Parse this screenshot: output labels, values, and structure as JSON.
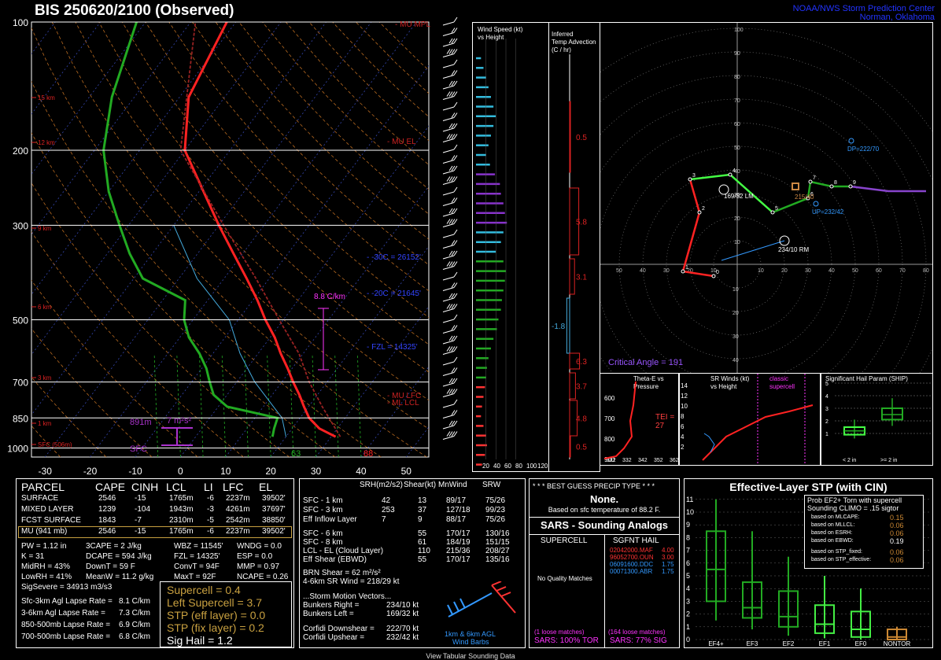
{
  "header": {
    "title": "BIS    250620/2100  (Observed)",
    "org_line1": "NOAA/NWS Storm Prediction Center",
    "org_line2": "Norman, Oklahoma"
  },
  "skewt": {
    "pressure_labels": [
      "100",
      "200",
      "300",
      "500",
      "700",
      "850",
      "1000"
    ],
    "temp_labels": [
      "-30",
      "-20",
      "-10",
      "0",
      "10",
      "20",
      "30",
      "40",
      "50"
    ],
    "height_labels": [
      "15 km",
      "12 km",
      "9 km",
      "6 km",
      "3 km",
      "1 km",
      "SFC (506m)"
    ],
    "level_labels": {
      "mu_mpl": "MU MPL",
      "mu_el": "MU EL",
      "mu_lfc": "MU LFC",
      "ml_lcl": "ML LCL",
      "m30c": "-30C = 26152'",
      "m20c": "-20C = 21645'",
      "fzl": "FZL = 14325'"
    },
    "lapse_label": "8.8 C/km",
    "eff_inflow": {
      "top": "891m",
      "srh": "7 m²s²",
      "bottom": "SFC"
    },
    "sfc_dewpoint": "63",
    "sfc_temp": "88"
  },
  "wind_panel": {
    "title1": "Wind Speed (kt)",
    "title2": "vs Height",
    "axis_labels": [
      "20",
      "40",
      "60",
      "80",
      "100",
      "120"
    ]
  },
  "advection_panel": {
    "title1": "Inferred",
    "title2": "Temp Advection",
    "title3": "(C / hr)",
    "values": [
      "0.5",
      "5.8",
      "3.1",
      "-1.8",
      "6.3",
      "3.7",
      "4.8",
      "0.5"
    ]
  },
  "hodograph": {
    "ring_labels": [
      "100",
      "90",
      "80",
      "70",
      "60",
      "50",
      "40",
      "30",
      "20",
      "10"
    ],
    "axis_labels": [
      "50",
      "40",
      "30",
      "20",
      "10",
      "10",
      "20",
      "30",
      "40",
      "50",
      "60",
      "70",
      "80"
    ],
    "neg_labels": [
      "10",
      "20",
      "30",
      "40"
    ],
    "lm_label": "169/32 LM",
    "rm_label": "234/10 RM",
    "dp_label": "DP=222/70",
    "up_label": "UP=232/42",
    "mean_label": "215/40",
    "critical_angle": "Critical Angle = 191",
    "points": [
      "0",
      "1",
      "2",
      "3",
      "4",
      "5",
      "6",
      "7",
      "8",
      "9"
    ]
  },
  "theta_panel": {
    "title1": "Theta-E vs",
    "title2": "Pressure",
    "tei": "TEI = 27",
    "p_labels": [
      "600",
      "700",
      "800",
      "900"
    ],
    "t_labels": [
      "322",
      "332",
      "342",
      "352",
      "362"
    ]
  },
  "srwind_panel": {
    "title1": "SR Winds (kt)",
    "title2": "vs Height",
    "classic": "classic",
    "supercell": "supercell",
    "h_labels": [
      "14",
      "12",
      "10",
      "8",
      "6",
      "4",
      "2"
    ]
  },
  "ship_panel": {
    "title": "Significant Hail Param (SHIP)",
    "y_labels": [
      "5",
      "4",
      "3",
      "2",
      "1"
    ],
    "x_labels": [
      "< 2 in",
      ">= 2 in"
    ]
  },
  "parcel_table": {
    "headers": [
      "PARCEL",
      "CAPE",
      "CINH",
      "LCL",
      "LI",
      "LFC",
      "EL"
    ],
    "rows": [
      [
        "SURFACE",
        "2546",
        "-15",
        "1765m",
        "-6",
        "2237m",
        "39502'"
      ],
      [
        "MIXED LAYER",
        "1239",
        "-104",
        "1943m",
        "-3",
        "4261m",
        "37697'"
      ],
      [
        "FCST SURFACE",
        "1843",
        "-7",
        "2310m",
        "-5",
        "2542m",
        "38850'"
      ],
      [
        "MU  (941 mb)",
        "2546",
        "-15",
        "1765m",
        "-6",
        "2237m",
        "39502'"
      ]
    ],
    "thermo": [
      [
        "PW = 1.12 in",
        "3CAPE = 2 J/kg",
        "WBZ = 11545'",
        "WNDG = 0.0"
      ],
      [
        "K = 31",
        "DCAPE = 594 J/kg",
        "FZL = 14325'",
        "ESP = 0.0"
      ],
      [
        "MidRH = 43%",
        "DownT = 59 F",
        "ConvT = 94F",
        "MMP = 0.97"
      ],
      [
        "LowRH = 41%",
        "MeanW = 11.2 g/kg",
        "MaxT = 92F",
        "NCAPE = 0.26"
      ]
    ],
    "sigsevere": "SigSevere = 34913 m3/s3",
    "lapse_rates": [
      [
        "Sfc-3km Agl Lapse Rate =",
        "8.1 C/km"
      ],
      [
        "3-6km Agl Lapse Rate =",
        "7.3 C/km"
      ],
      [
        "850-500mb Lapse Rate =",
        "6.9 C/km"
      ],
      [
        "700-500mb Lapse Rate =",
        "6.8 C/km"
      ]
    ],
    "indices": [
      "Supercell = 0.4",
      "Left Supercell = 3.7",
      "STP (eff layer) = 0.0",
      "STP (fix layer) = 0.2",
      "Sig Hail = 1.2"
    ]
  },
  "kinematic_table": {
    "headers": [
      "SRH(m2/s2)",
      "Shear(kt)",
      "MnWind",
      "SRW"
    ],
    "rows1": [
      [
        "SFC - 1 km",
        "42",
        "13",
        "89/17",
        "75/26"
      ],
      [
        "SFC - 3 km",
        "253",
        "37",
        "127/18",
        "99/23"
      ],
      [
        "Eff Inflow Layer",
        "7",
        "9",
        "88/17",
        "75/26"
      ]
    ],
    "rows2": [
      [
        "SFC - 6 km",
        "",
        "55",
        "170/17",
        "130/16"
      ],
      [
        "SFC - 8 km",
        "",
        "61",
        "184/19",
        "151/15"
      ],
      [
        "LCL - EL (Cloud Layer)",
        "",
        "110",
        "215/36",
        "208/27"
      ],
      [
        "Eff Shear (EBWD)",
        "",
        "55",
        "170/17",
        "135/16"
      ]
    ],
    "brn": [
      "BRN Shear =  62 m²/s²",
      "4-6km SR Wind =       218/29 kt"
    ],
    "storm_motion_title": "...Storm Motion Vectors...",
    "storm_motion": [
      [
        "Bunkers Right =",
        "234/10 kt"
      ],
      [
        "Bunkers Left =",
        "169/32 kt"
      ],
      [
        "Corfidi Downshear =",
        "222/70 kt"
      ],
      [
        "Corfidi Upshear =",
        "232/42 kt"
      ]
    ],
    "barb_label1": "1km & 6km AGL",
    "barb_label2": "Wind Barbs"
  },
  "precip": {
    "title": "* * * BEST GUESS PRECIP TYPE * * *",
    "value": "None.",
    "note": "Based on sfc temperature of 88.2 F."
  },
  "sars": {
    "title": "SARS - Sounding Analogs",
    "col1": "SUPERCELL",
    "col2": "SGFNT HAIL",
    "no_match": "No Quality Matches",
    "hail_matches": [
      [
        "02042000.MAF",
        "4.00"
      ],
      [
        "96052700.OUN",
        "3.00"
      ],
      [
        "06091600.DDC",
        "1.75"
      ],
      [
        "00071300.ABR",
        "1.75"
      ]
    ],
    "loose1": "(1 loose matches)",
    "loose2": "(164 loose matches)",
    "sars1": "SARS:  100% TOR",
    "sars2": "SARS:  77% SIG"
  },
  "stp": {
    "title": "Effective-Layer STP (with CIN)",
    "prob_title1": "Prob EF2+ Torn with supercell",
    "prob_title2": "Sounding CLIMO = .15 sigtor",
    "based": [
      [
        "based on MLCAPE:",
        "0.15"
      ],
      [
        "based on MLLCL:",
        "0.06"
      ],
      [
        "based on ESRH:",
        "0.06"
      ],
      [
        "based on EBWD:",
        "0.19"
      ],
      [
        "based on STP_fixed:",
        "0.06"
      ],
      [
        "based on STP_effective:",
        "0.06"
      ]
    ],
    "y_labels": [
      "11",
      "10",
      "9",
      "8",
      "7",
      "6",
      "5",
      "4",
      "3",
      "2",
      "1",
      "0"
    ],
    "categories": [
      "EF4+",
      "EF3",
      "EF2",
      "EF1",
      "EF0",
      "NONTOR"
    ]
  },
  "chart_data": [
    {
      "type": "line",
      "title": "Skew-T log-P",
      "xlabel": "",
      "ylabel": "",
      "ylim": [
        1000,
        100
      ],
      "xlim": [
        -30,
        50
      ],
      "series": [
        {
          "name": "temperature",
          "pressure": [
            941,
            900,
            850,
            800,
            750,
            700,
            650,
            600,
            550,
            500,
            450,
            400,
            350,
            300,
            250,
            200,
            150,
            100
          ],
          "values": [
            31,
            26,
            22,
            19,
            16,
            12.5,
            9,
            5,
            1,
            -4,
            -9,
            -15,
            -22,
            -30,
            -39,
            -50,
            -58,
            -62
          ]
        },
        {
          "name": "dewpoint",
          "pressure": [
            941,
            900,
            850,
            800,
            750,
            700,
            650,
            600,
            550,
            500,
            450,
            400,
            350,
            300,
            250,
            200,
            150,
            100
          ],
          "values": [
            17,
            16,
            15,
            2,
            -3,
            -6,
            -9,
            -13,
            -18,
            -22,
            -25,
            -38,
            -45,
            -52,
            -60,
            -68,
            -75,
            -82
          ]
        }
      ]
    },
    {
      "type": "bar",
      "title": "Wind Speed (kt) vs Height",
      "xlim": [
        0,
        120
      ],
      "values": [
        10,
        15,
        20,
        25,
        30,
        35,
        40,
        35,
        30,
        25,
        20,
        28,
        38,
        48,
        50,
        55,
        58,
        62,
        55,
        50,
        40,
        55,
        60,
        58,
        55,
        52,
        50,
        45,
        42,
        35,
        30,
        25,
        22,
        20,
        18,
        15,
        12,
        10,
        15,
        20,
        22,
        18,
        12,
        10
      ]
    },
    {
      "type": "bar",
      "title": "Inferred Temp Advection (C / hr)",
      "values": [
        0.5,
        5.8,
        3.1,
        -1.8,
        6.3,
        3.7,
        4.8,
        0.5
      ]
    },
    {
      "type": "box",
      "title": "Effective-Layer STP (with CIN)",
      "categories": [
        "EF4+",
        "EF3",
        "EF2",
        "EF1",
        "EF0",
        "NONTOR"
      ],
      "ylim": [
        0,
        11
      ],
      "boxes": [
        {
          "low": 1.5,
          "q1": 3.0,
          "median": 5.5,
          "q3": 8.5,
          "high": 11.0
        },
        {
          "low": 0.8,
          "q1": 1.7,
          "median": 2.5,
          "q3": 4.5,
          "high": 8.5
        },
        {
          "low": 0.3,
          "q1": 1.0,
          "median": 1.8,
          "q3": 3.8,
          "high": 6.5
        },
        {
          "low": 0.1,
          "q1": 0.5,
          "median": 1.2,
          "q3": 2.7,
          "high": 5.0
        },
        {
          "low": 0.0,
          "q1": 0.2,
          "median": 0.8,
          "q3": 2.2,
          "high": 4.0
        },
        {
          "low": 0.0,
          "q1": 0.0,
          "median": 0.2,
          "q3": 0.8,
          "high": 1.0
        }
      ]
    },
    {
      "type": "box",
      "title": "Significant Hail Param (SHIP)",
      "categories": [
        "< 2 in",
        ">= 2 in"
      ],
      "ylim": [
        0,
        5
      ],
      "boxes": [
        {
          "low": 0.6,
          "q1": 0.9,
          "median": 1.2,
          "q3": 1.5,
          "high": 2.1
        },
        {
          "low": 1.6,
          "q1": 2.1,
          "median": 2.5,
          "q3": 3.0,
          "high": 3.8
        }
      ]
    }
  ]
}
